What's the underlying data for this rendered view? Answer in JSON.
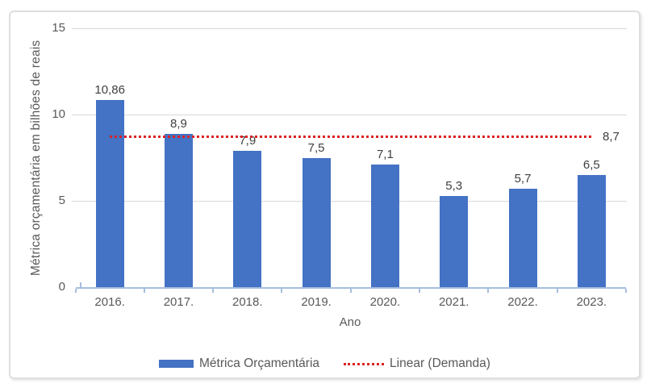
{
  "chart_data": {
    "type": "bar",
    "title": "",
    "xlabel": "Ano",
    "ylabel": "Métrica orçamentária em bilhões de reais",
    "categories": [
      "2016.",
      "2017.",
      "2018.",
      "2019.",
      "2020.",
      "2021.",
      "2022.",
      "2023."
    ],
    "series": [
      {
        "name": "Métrica Orçamentária",
        "color": "#4472c4",
        "values": [
          10.86,
          8.9,
          7.9,
          7.5,
          7.1,
          5.3,
          5.7,
          6.5
        ],
        "value_labels": [
          "10,86",
          "8,9",
          "7,9",
          "7,5",
          "7,1",
          "5,3",
          "5,7",
          "6,5"
        ]
      }
    ],
    "trendline": {
      "name": "Linear (Demanda)",
      "value": 8.7,
      "label": "8,7",
      "color": "#dd2222",
      "style": "dotted"
    },
    "ylim": [
      0,
      15
    ],
    "yticks": [
      0,
      5,
      10,
      15
    ],
    "grid": true,
    "legend_position": "bottom",
    "bar_color": "#4472c4",
    "axis_color": "#a6bede",
    "gridline_color": "#d9d9d9"
  },
  "legend": {
    "items": [
      {
        "label": "Métrica Orçamentária",
        "swatch": "bar",
        "color": "#4472c4"
      },
      {
        "label": "Linear (Demanda)",
        "swatch": "dotted-line",
        "color": "#dd2222"
      }
    ]
  }
}
